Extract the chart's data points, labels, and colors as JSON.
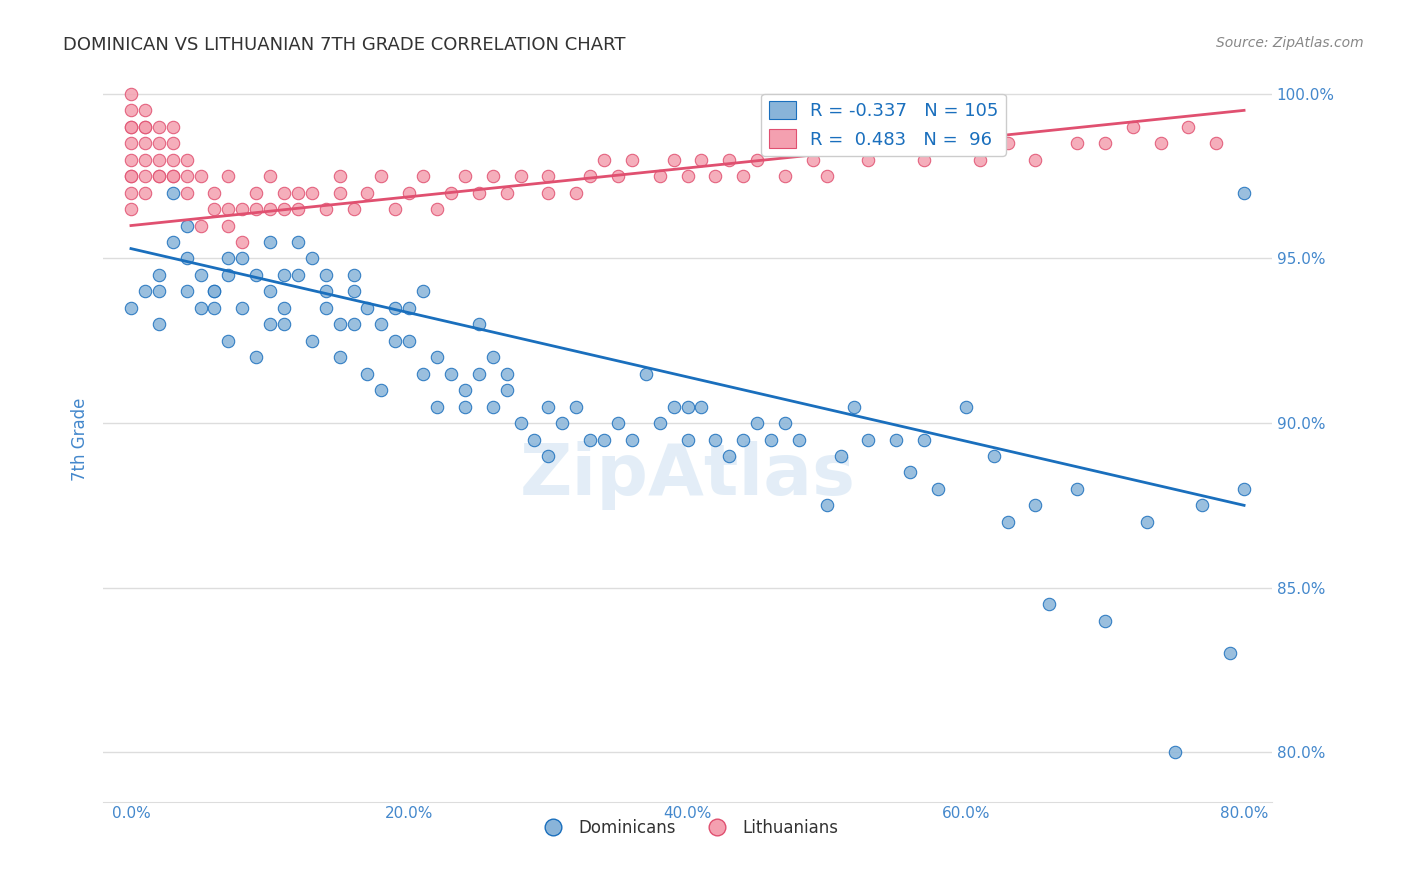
{
  "title": "DOMINICAN VS LITHUANIAN 7TH GRADE CORRELATION CHART",
  "source": "Source: ZipAtlas.com",
  "ylabel": "7th Grade",
  "xlabel_ticks": [
    "0.0%",
    "20.0%",
    "40.0%",
    "60.0%",
    "80.0%"
  ],
  "ylabel_ticks": [
    "80.0%",
    "85.0%",
    "90.0%",
    "95.0%",
    "100.0%"
  ],
  "xlim": [
    -0.02,
    0.82
  ],
  "ylim": [
    0.785,
    1.005
  ],
  "x_tick_vals": [
    0.0,
    0.2,
    0.4,
    0.6,
    0.8
  ],
  "y_tick_vals": [
    0.8,
    0.85,
    0.9,
    0.95,
    1.0
  ],
  "legend_r_blue": "-0.337",
  "legend_n_blue": "105",
  "legend_r_pink": "0.483",
  "legend_n_pink": "96",
  "blue_color": "#89b4d9",
  "pink_color": "#f4a0b0",
  "blue_line_color": "#1a6fbd",
  "pink_line_color": "#e05070",
  "watermark": "ZipAtlas",
  "dominicans_label": "Dominicans",
  "lithuanians_label": "Lithuanians",
  "blue_scatter_x": [
    0.0,
    0.01,
    0.02,
    0.02,
    0.02,
    0.03,
    0.03,
    0.04,
    0.04,
    0.04,
    0.05,
    0.05,
    0.06,
    0.06,
    0.06,
    0.07,
    0.07,
    0.07,
    0.08,
    0.08,
    0.09,
    0.09,
    0.1,
    0.1,
    0.1,
    0.11,
    0.11,
    0.11,
    0.12,
    0.12,
    0.13,
    0.13,
    0.14,
    0.14,
    0.14,
    0.15,
    0.15,
    0.16,
    0.16,
    0.16,
    0.17,
    0.17,
    0.18,
    0.18,
    0.19,
    0.19,
    0.2,
    0.2,
    0.21,
    0.21,
    0.22,
    0.22,
    0.23,
    0.24,
    0.24,
    0.25,
    0.25,
    0.26,
    0.26,
    0.27,
    0.27,
    0.28,
    0.29,
    0.3,
    0.3,
    0.31,
    0.32,
    0.33,
    0.34,
    0.35,
    0.36,
    0.37,
    0.38,
    0.39,
    0.4,
    0.4,
    0.41,
    0.42,
    0.43,
    0.44,
    0.45,
    0.46,
    0.47,
    0.48,
    0.5,
    0.51,
    0.52,
    0.53,
    0.55,
    0.56,
    0.57,
    0.58,
    0.6,
    0.62,
    0.63,
    0.65,
    0.66,
    0.68,
    0.7,
    0.73,
    0.75,
    0.77,
    0.79,
    0.8,
    0.8
  ],
  "blue_scatter_y": [
    0.935,
    0.94,
    0.945,
    0.93,
    0.94,
    0.97,
    0.955,
    0.96,
    0.94,
    0.95,
    0.945,
    0.935,
    0.94,
    0.935,
    0.94,
    0.945,
    0.925,
    0.95,
    0.95,
    0.935,
    0.945,
    0.92,
    0.93,
    0.955,
    0.94,
    0.945,
    0.935,
    0.93,
    0.945,
    0.955,
    0.925,
    0.95,
    0.94,
    0.935,
    0.945,
    0.93,
    0.92,
    0.945,
    0.93,
    0.94,
    0.935,
    0.915,
    0.91,
    0.93,
    0.925,
    0.935,
    0.925,
    0.935,
    0.94,
    0.915,
    0.905,
    0.92,
    0.915,
    0.91,
    0.905,
    0.93,
    0.915,
    0.92,
    0.905,
    0.91,
    0.915,
    0.9,
    0.895,
    0.905,
    0.89,
    0.9,
    0.905,
    0.895,
    0.895,
    0.9,
    0.895,
    0.915,
    0.9,
    0.905,
    0.895,
    0.905,
    0.905,
    0.895,
    0.89,
    0.895,
    0.9,
    0.895,
    0.9,
    0.895,
    0.875,
    0.89,
    0.905,
    0.895,
    0.895,
    0.885,
    0.895,
    0.88,
    0.905,
    0.89,
    0.87,
    0.875,
    0.845,
    0.88,
    0.84,
    0.87,
    0.8,
    0.875,
    0.83,
    0.97,
    0.88
  ],
  "pink_scatter_x": [
    0.0,
    0.0,
    0.0,
    0.0,
    0.0,
    0.0,
    0.0,
    0.0,
    0.0,
    0.0,
    0.01,
    0.01,
    0.01,
    0.01,
    0.01,
    0.01,
    0.01,
    0.02,
    0.02,
    0.02,
    0.02,
    0.02,
    0.03,
    0.03,
    0.03,
    0.03,
    0.03,
    0.04,
    0.04,
    0.04,
    0.05,
    0.05,
    0.06,
    0.06,
    0.07,
    0.07,
    0.07,
    0.08,
    0.08,
    0.09,
    0.09,
    0.1,
    0.1,
    0.11,
    0.11,
    0.12,
    0.12,
    0.13,
    0.14,
    0.15,
    0.15,
    0.16,
    0.17,
    0.18,
    0.19,
    0.2,
    0.21,
    0.22,
    0.23,
    0.24,
    0.25,
    0.26,
    0.27,
    0.28,
    0.3,
    0.3,
    0.32,
    0.33,
    0.34,
    0.35,
    0.36,
    0.38,
    0.39,
    0.4,
    0.41,
    0.42,
    0.43,
    0.44,
    0.45,
    0.47,
    0.49,
    0.5,
    0.51,
    0.53,
    0.55,
    0.57,
    0.59,
    0.61,
    0.63,
    0.65,
    0.68,
    0.7,
    0.72,
    0.74,
    0.76,
    0.78
  ],
  "pink_scatter_y": [
    0.965,
    0.975,
    0.97,
    0.98,
    0.99,
    0.985,
    0.995,
    0.99,
    1.0,
    0.975,
    0.975,
    0.985,
    0.99,
    0.995,
    0.98,
    0.97,
    0.99,
    0.975,
    0.985,
    0.98,
    0.99,
    0.975,
    0.975,
    0.985,
    0.98,
    0.99,
    0.975,
    0.98,
    0.975,
    0.97,
    0.975,
    0.96,
    0.965,
    0.97,
    0.96,
    0.965,
    0.975,
    0.955,
    0.965,
    0.965,
    0.97,
    0.965,
    0.975,
    0.965,
    0.97,
    0.965,
    0.97,
    0.97,
    0.965,
    0.97,
    0.975,
    0.965,
    0.97,
    0.975,
    0.965,
    0.97,
    0.975,
    0.965,
    0.97,
    0.975,
    0.97,
    0.975,
    0.97,
    0.975,
    0.97,
    0.975,
    0.97,
    0.975,
    0.98,
    0.975,
    0.98,
    0.975,
    0.98,
    0.975,
    0.98,
    0.975,
    0.98,
    0.975,
    0.98,
    0.975,
    0.98,
    0.975,
    0.985,
    0.98,
    0.985,
    0.98,
    0.985,
    0.98,
    0.985,
    0.98,
    0.985,
    0.985,
    0.99,
    0.985,
    0.99,
    0.985
  ],
  "blue_trendline_x": [
    0.0,
    0.8
  ],
  "blue_trendline_y": [
    0.953,
    0.875
  ],
  "pink_trendline_x": [
    0.0,
    0.8
  ],
  "pink_trendline_y": [
    0.96,
    0.995
  ],
  "background_color": "#ffffff",
  "grid_color": "#dddddd",
  "title_color": "#333333",
  "axis_label_color": "#4488cc",
  "tick_label_color": "#4488cc"
}
